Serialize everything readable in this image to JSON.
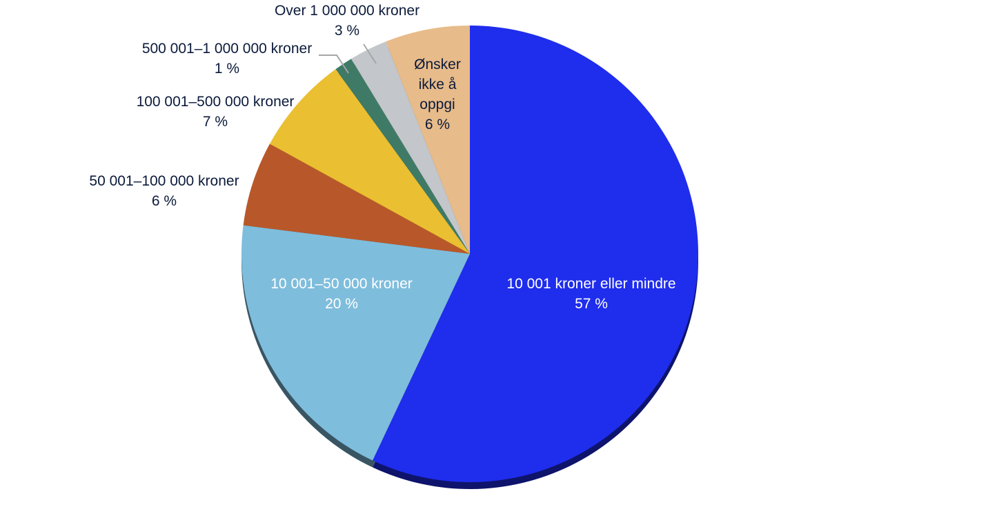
{
  "chart_data": {
    "type": "pie",
    "title": "",
    "start_angle_deg": 0,
    "direction": "clockwise",
    "slices": [
      {
        "label": "10 001 kroner eller mindre",
        "pct_text": "57 %",
        "value": 57,
        "color": "#1f2ded",
        "label_color": "#ffffff"
      },
      {
        "label": "10 001–50 000 kroner",
        "pct_text": "20 %",
        "value": 20,
        "color": "#7fbddc",
        "label_color": "#ffffff"
      },
      {
        "label": "50 001–100 000 kroner",
        "pct_text": "6 %",
        "value": 6,
        "color": "#b8582a",
        "label_color": "#0b1a3a"
      },
      {
        "label": "100 001–500 000 kroner",
        "pct_text": "7 %",
        "value": 7,
        "color": "#eabf32",
        "label_color": "#0b1a3a"
      },
      {
        "label": "500 001–1 000 000 kroner",
        "pct_text": "1 %",
        "value": 1.3,
        "color": "#3f7a66",
        "label_color": "#0b1a3a"
      },
      {
        "label": "Over 1 000 000 kroner",
        "pct_text": "3 %",
        "value": 2.7,
        "color": "#c3c6ca",
        "label_color": "#0b1a3a"
      },
      {
        "label": "Ønsker ikke å oppgi",
        "pct_text": "6 %",
        "value": 6,
        "color": "#e7bb8a",
        "label_color": "#0b1a3a"
      }
    ]
  }
}
